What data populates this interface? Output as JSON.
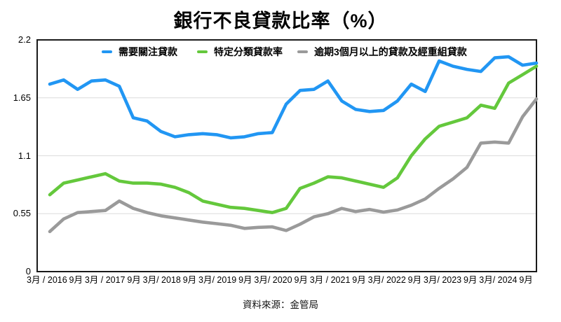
{
  "title": "銀行不良貸款比率（%）",
  "source": "資料來源：金管局",
  "chart_data": {
    "type": "line",
    "title": "銀行不良貸款比率（%）",
    "xlabel": "",
    "ylabel": "",
    "ylim": [
      0,
      2.2
    ],
    "y_ticks": [
      0,
      0.55,
      1.1,
      1.65,
      2.2
    ],
    "grid": "horizontal",
    "legend_position": "top-inside",
    "x_labels": [
      "3月 / 2016",
      "9月",
      "3月 / 2017",
      "9月",
      "3月/ 2018",
      "9月",
      "3月/ 2019",
      "9月",
      "3月/ 2020",
      "9月",
      "3月 / 2021",
      "9月",
      "3月/ 2022",
      "9月",
      "3月/ 2023",
      "9月",
      "3月/ 2024",
      "9月"
    ],
    "points_per_label": 2,
    "series": [
      {
        "name": "需要關注貸款",
        "color": "#2196f3",
        "values": [
          1.78,
          1.82,
          1.73,
          1.81,
          1.82,
          1.76,
          1.46,
          1.43,
          1.33,
          1.28,
          1.3,
          1.31,
          1.3,
          1.27,
          1.28,
          1.31,
          1.32,
          1.59,
          1.72,
          1.73,
          1.81,
          1.62,
          1.54,
          1.52,
          1.53,
          1.62,
          1.78,
          1.71,
          2.0,
          1.95,
          1.92,
          1.9,
          2.03,
          2.04,
          1.96,
          1.98
        ]
      },
      {
        "name": "特定分類貸款率",
        "color": "#64c83c",
        "values": [
          0.73,
          0.84,
          0.87,
          0.9,
          0.93,
          0.86,
          0.84,
          0.84,
          0.83,
          0.8,
          0.75,
          0.67,
          0.64,
          0.61,
          0.6,
          0.58,
          0.56,
          0.6,
          0.79,
          0.84,
          0.9,
          0.89,
          0.86,
          0.83,
          0.8,
          0.89,
          1.1,
          1.26,
          1.38,
          1.42,
          1.46,
          1.58,
          1.55,
          1.79,
          1.87,
          1.95
        ]
      },
      {
        "name": "逾期3個月以上的貸款及經重組貸款",
        "color": "#9a9a9a",
        "values": [
          0.38,
          0.5,
          0.56,
          0.57,
          0.58,
          0.67,
          0.6,
          0.56,
          0.53,
          0.51,
          0.49,
          0.47,
          0.455,
          0.44,
          0.41,
          0.42,
          0.425,
          0.39,
          0.45,
          0.52,
          0.55,
          0.6,
          0.57,
          0.59,
          0.565,
          0.585,
          0.63,
          0.69,
          0.79,
          0.88,
          0.99,
          1.22,
          1.23,
          1.22,
          1.47,
          1.64
        ]
      }
    ]
  }
}
